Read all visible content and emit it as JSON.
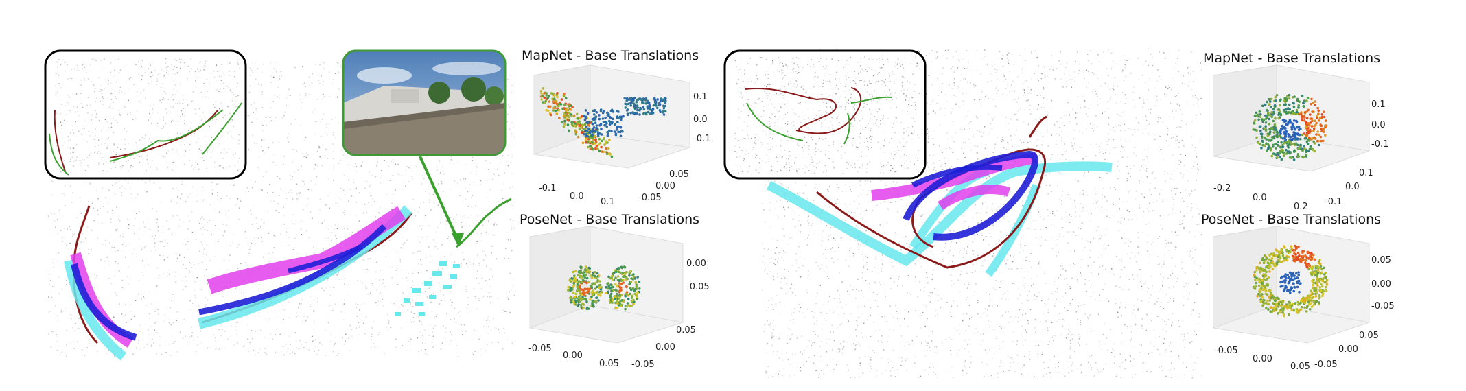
{
  "figure": {
    "background": "#ffffff",
    "trajectory_colors": {
      "ground_truth": "#8b1a1a",
      "prediction_a": "#1f1fd6",
      "prediction_b": "#e040ec",
      "prediction_c": "#66e8ec",
      "inset_line": "#3aa02e"
    },
    "inset_border_color": "#3f9a35",
    "photo_colors": {
      "sky": "#6f95c6",
      "wall": "#8a8070",
      "trees": "#3c6a32"
    }
  },
  "left_panel": {
    "mapnet": {
      "title": "MapNet - Base Translations",
      "z_ticks": [
        "0.1",
        "0.0",
        "-0.1"
      ],
      "x_ticks": [
        "-0.1",
        "0.0",
        "0.1"
      ],
      "y_ticks": [
        "0.05",
        "0.00",
        "-0.05"
      ]
    },
    "posenet": {
      "title": "PoseNet - Base Translations",
      "z_ticks": [
        "0.00",
        "-0.05"
      ],
      "x_ticks": [
        "-0.05",
        "0.00",
        "0.05"
      ],
      "y_ticks": [
        "0.05",
        "0.00",
        "-0.05"
      ]
    }
  },
  "right_panel": {
    "mapnet": {
      "title": "MapNet - Base Translations",
      "z_ticks": [
        "0.1",
        "0.0",
        "-0.1"
      ],
      "x_ticks": [
        "-0.2",
        "0.0",
        "0.2"
      ],
      "y_ticks": [
        "0.1",
        "0.0",
        "-0.1"
      ]
    },
    "posenet": {
      "title": "PoseNet - Base Translations",
      "z_ticks": [
        "0.05",
        "0.00",
        "-0.05"
      ],
      "x_ticks": [
        "-0.05",
        "0.00",
        "0.05"
      ],
      "y_ticks": [
        "0.05",
        "0.00",
        "-0.05"
      ]
    }
  }
}
